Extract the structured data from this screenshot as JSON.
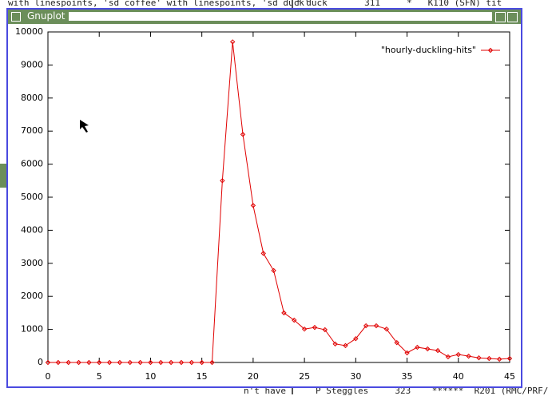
{
  "background_text": [
    "with linespoints, 'sd coffee' with linespoints, 'sd duck'",
    "f duck       311     *   K110 (SFN) tit",
    "P Steggles     323    ******  R201 (RMC/PRF/",
    "n't have"
  ],
  "window": {
    "title": "Gnuplot"
  },
  "chart_data": {
    "type": "line",
    "x": [
      0,
      1,
      2,
      3,
      4,
      5,
      6,
      7,
      8,
      9,
      10,
      11,
      12,
      13,
      14,
      15,
      16,
      17,
      18,
      19,
      20,
      21,
      22,
      23,
      24,
      25,
      26,
      27,
      28,
      29,
      30,
      31,
      32,
      33,
      34,
      35,
      36,
      37,
      38,
      39,
      40,
      41,
      42,
      43,
      44,
      45
    ],
    "series": [
      {
        "name": "\"hourly-duckling-hits\"",
        "color": "#e00000",
        "values": [
          0,
          0,
          0,
          0,
          0,
          0,
          0,
          0,
          0,
          0,
          0,
          0,
          0,
          0,
          0,
          0,
          0,
          5500,
          9700,
          6900,
          4750,
          3300,
          2780,
          1500,
          1280,
          1010,
          1060,
          990,
          560,
          510,
          720,
          1110,
          1110,
          1010,
          600,
          290,
          460,
          410,
          360,
          170,
          240,
          190,
          140,
          120,
          100,
          120
        ]
      }
    ],
    "xlim": [
      0,
      45
    ],
    "xticks": [
      0,
      5,
      10,
      15,
      20,
      25,
      30,
      35,
      40,
      45
    ],
    "ylim": [
      0,
      10000
    ],
    "yticks": [
      0,
      1000,
      2000,
      3000,
      4000,
      5000,
      6000,
      7000,
      8000,
      9000,
      10000
    ],
    "legend": "top-right"
  }
}
